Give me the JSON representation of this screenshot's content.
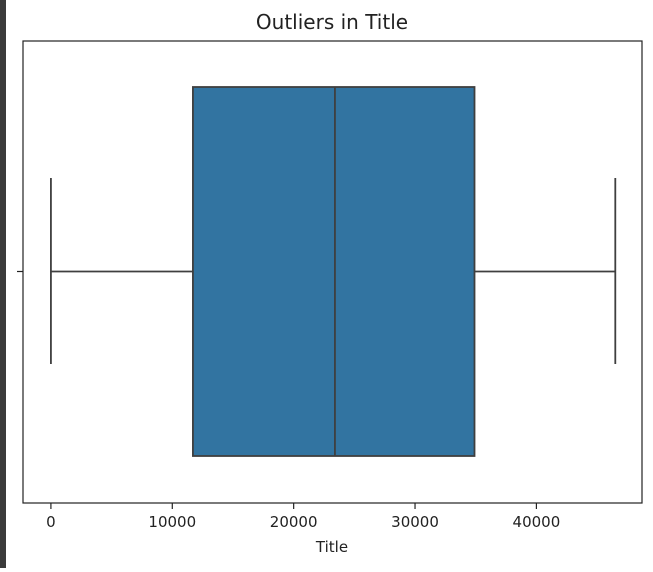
{
  "chart_data": {
    "type": "box",
    "title": "Outliers in Title",
    "xlabel": "Title",
    "ylabel": "",
    "xlim": [
      -2300,
      48700
    ],
    "x_ticks": [
      0,
      10000,
      20000,
      30000,
      40000
    ],
    "x_tick_labels": [
      "0",
      "10000",
      "20000",
      "30000",
      "40000"
    ],
    "box": {
      "whisker_low": 0,
      "q1": 11700,
      "median": 23400,
      "q3": 34900,
      "whisker_high": 46500
    },
    "outliers": [],
    "grid": false,
    "legend": "none",
    "colors": {
      "box_fill": "#3274a1",
      "line": "#3f3f3f",
      "axis": "#222222"
    }
  }
}
